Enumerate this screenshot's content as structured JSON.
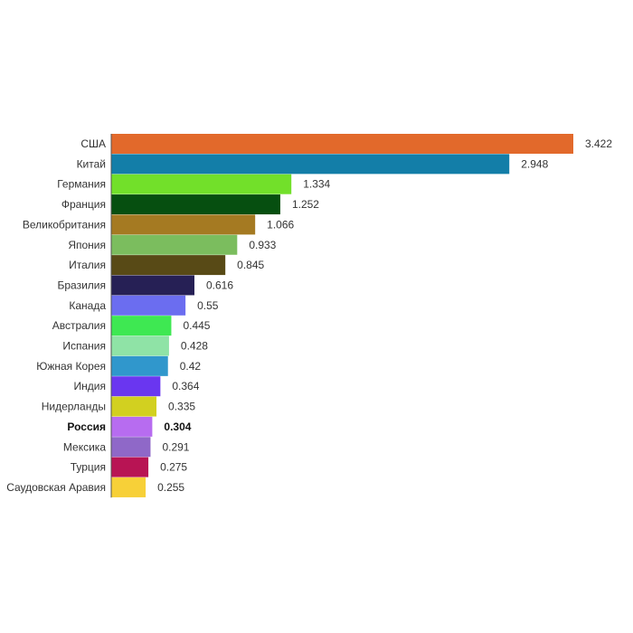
{
  "chart_data": {
    "type": "bar",
    "orientation": "horizontal",
    "categories": [
      "США",
      "Китай",
      "Германия",
      "Франция",
      "Великобритания",
      "Япония",
      "Италия",
      "Бразилия",
      "Канада",
      "Австралия",
      "Испания",
      "Южная Корея",
      "Индия",
      "Нидерланды",
      "Россия",
      "Мексика",
      "Турция",
      "Саудовская Аравия"
    ],
    "values": [
      3.422,
      2.948,
      1.334,
      1.252,
      1.066,
      0.933,
      0.845,
      0.616,
      0.55,
      0.445,
      0.428,
      0.42,
      0.364,
      0.335,
      0.304,
      0.291,
      0.275,
      0.255
    ],
    "value_labels": [
      "3.422",
      "2.948",
      "1.334",
      "1.252",
      "1.066",
      "0.933",
      "0.845",
      "0.616",
      "0.55",
      "0.445",
      "0.428",
      "0.42",
      "0.364",
      "0.335",
      "0.304",
      "0.291",
      "0.275",
      "0.255"
    ],
    "colors": [
      "#e2692b",
      "#137ea8",
      "#72e02a",
      "#064f10",
      "#a57a22",
      "#7bbd5e",
      "#584a16",
      "#262055",
      "#6b6df0",
      "#3ee852",
      "#8fe3a6",
      "#3097cc",
      "#6a36f0",
      "#d2d020",
      "#b76cf0",
      "#8f68c8",
      "#b81454",
      "#f7d038"
    ],
    "highlight": "Россия",
    "title": "",
    "xlabel": "",
    "ylabel": "",
    "xlim": [
      0,
      3.422
    ],
    "grid": false,
    "legend": "none"
  }
}
